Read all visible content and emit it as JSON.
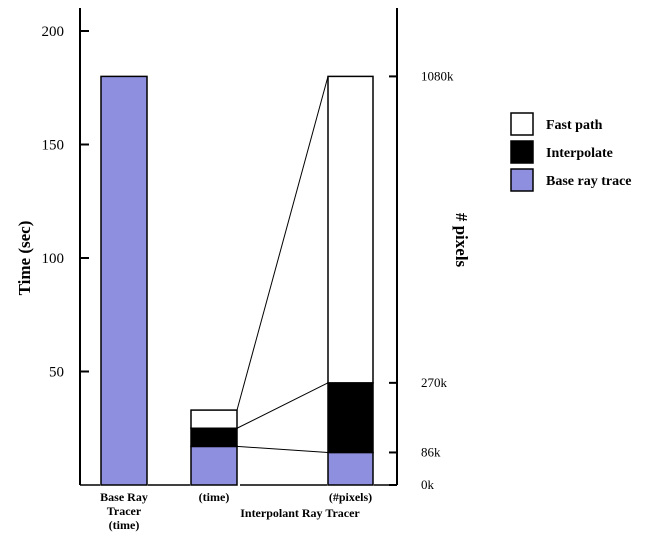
{
  "chart_data": {
    "type": "bar",
    "stacked": true,
    "ylabel": "Time (sec)",
    "ylabel_right": "# pixels",
    "ylim": [
      0,
      210
    ],
    "yticks": [
      50,
      100,
      150,
      200
    ],
    "right_ticks": [
      "1080k",
      "270k",
      "86k",
      "0k"
    ],
    "right_ticks_values": [
      1080,
      270,
      86,
      0
    ],
    "right_lim": [
      0,
      1080
    ],
    "categories": [
      {
        "id": "base",
        "lines": [
          "Base Ray",
          "Tracer",
          "(time)"
        ]
      },
      {
        "id": "interp-time",
        "lines": [
          "(time)"
        ]
      },
      {
        "id": "interp-pixels",
        "lines": [
          "(#pixels)"
        ]
      }
    ],
    "group_label": "Interpolant Ray Tracer",
    "series": [
      {
        "name": "Base ray trace",
        "color": "#8f8fe0",
        "values": [
          180,
          17,
          86
        ]
      },
      {
        "name": "Interpolate",
        "color": "#000000",
        "values": [
          0,
          8,
          184
        ]
      },
      {
        "name": "Fast path",
        "color": "#ffffff",
        "values": [
          0,
          8,
          810
        ]
      }
    ],
    "legend": [
      "Fast path",
      "Interpolate",
      "Base ray trace"
    ],
    "legend_position": "right"
  }
}
